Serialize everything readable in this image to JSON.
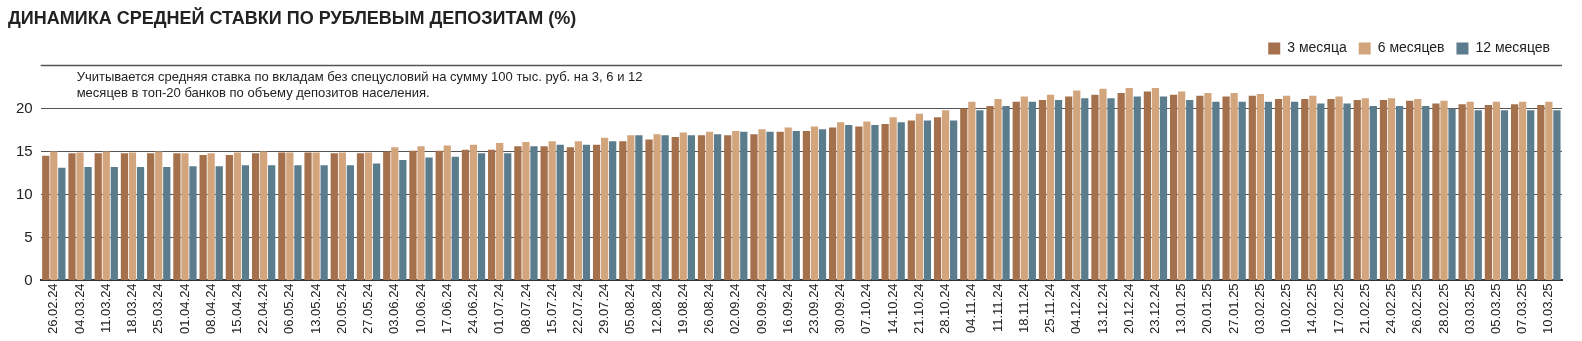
{
  "chart_data": {
    "type": "bar",
    "title": "ДИНАМИКА СРЕДНЕЙ СТАВКИ ПО РУБЛЕВЫМ ДЕПОЗИТАМ (%)",
    "annotations": [
      "Учитывается средняя ставка по вкладам без спецусловий на сумму 100 тыс. руб. на 3, 6 и 12 месяцев в топ-20 банков по объему депозитов населения."
    ],
    "categories": [
      "26.02.24",
      "04.03.24",
      "11.03.24",
      "18.03.24",
      "25.03.24",
      "01.04.24",
      "08.04.24",
      "15.04.24",
      "22.04.24",
      "06.05.24",
      "13.05.24",
      "20.05.24",
      "27.05.24",
      "03.06.24",
      "10.06.24",
      "17.06.24",
      "24.06.24",
      "01.07.24",
      "08.07.24",
      "15.07.24",
      "22.07.24",
      "29.07.24",
      "05.08.24",
      "12.08.24",
      "19.08.24",
      "26.08.24",
      "02.09.24",
      "09.09.24",
      "16.09.24",
      "23.09.24",
      "30.09.24",
      "07.10.24",
      "14.10.24",
      "21.10.24",
      "28.10.24",
      "04.11.24",
      "11.11.24",
      "18.11.24",
      "25.11.24",
      "04.12.24",
      "13.12.24",
      "20.12.24",
      "23.12.24",
      "13.01.25",
      "20.01.25",
      "27.01.25",
      "03.02.25",
      "10.02.25",
      "14.02.25",
      "17.02.25",
      "21.02.25",
      "24.02.25",
      "26.02.25",
      "28.02.25",
      "03.03.25",
      "05.03.25",
      "07.03.25",
      "10.03.25"
    ],
    "series": [
      {
        "name": "3 месяца",
        "color": "#a5714c",
        "values": [
          14.5,
          14.8,
          14.8,
          14.8,
          14.8,
          14.8,
          14.6,
          14.6,
          14.8,
          14.9,
          14.9,
          14.8,
          14.8,
          15.0,
          15.1,
          15.1,
          15.2,
          15.2,
          15.6,
          15.6,
          15.5,
          15.8,
          16.2,
          16.4,
          16.7,
          16.9,
          16.9,
          17.0,
          17.3,
          17.4,
          17.8,
          17.9,
          18.2,
          18.6,
          19.0,
          20.0,
          20.3,
          20.8,
          21.0,
          21.4,
          21.6,
          21.8,
          22.0,
          21.6,
          21.5,
          21.4,
          21.5,
          21.1,
          21.1,
          21.1,
          21.0,
          21.0,
          20.9,
          20.6,
          20.5,
          20.4,
          20.5,
          20.4
        ]
      },
      {
        "name": "6 месяцев",
        "color": "#d3a57d",
        "values": [
          15.0,
          14.9,
          15.0,
          14.9,
          15.0,
          14.8,
          14.8,
          14.9,
          15.0,
          14.9,
          14.9,
          14.9,
          14.9,
          15.5,
          15.6,
          15.7,
          15.8,
          16.0,
          16.1,
          16.2,
          16.2,
          16.6,
          16.9,
          17.0,
          17.2,
          17.3,
          17.4,
          17.6,
          17.8,
          17.9,
          18.4,
          18.5,
          19.0,
          19.4,
          19.8,
          20.8,
          21.1,
          21.4,
          21.6,
          22.1,
          22.3,
          22.4,
          22.4,
          22.0,
          21.8,
          21.8,
          21.7,
          21.5,
          21.5,
          21.4,
          21.2,
          21.2,
          21.1,
          20.9,
          20.8,
          20.8,
          20.8,
          20.8
        ]
      },
      {
        "name": "12 месяцев",
        "color": "#5b7c8c",
        "values": [
          13.1,
          13.2,
          13.2,
          13.2,
          13.2,
          13.3,
          13.3,
          13.4,
          13.4,
          13.4,
          13.4,
          13.4,
          13.6,
          14.0,
          14.3,
          14.4,
          14.8,
          14.8,
          15.6,
          15.8,
          15.8,
          16.2,
          16.9,
          16.9,
          16.9,
          17.0,
          17.3,
          17.3,
          17.4,
          17.6,
          18.1,
          18.1,
          18.4,
          18.6,
          18.6,
          19.8,
          20.3,
          20.8,
          21.0,
          21.2,
          21.2,
          21.4,
          21.4,
          21.0,
          20.8,
          20.8,
          20.8,
          20.8,
          20.6,
          20.6,
          20.3,
          20.3,
          20.3,
          20.0,
          19.8,
          19.8,
          19.8,
          19.8
        ]
      }
    ],
    "ylim": [
      0,
      25
    ],
    "yticks": [
      0,
      5,
      10,
      15,
      20
    ],
    "grid": "y",
    "legend": "top right"
  }
}
